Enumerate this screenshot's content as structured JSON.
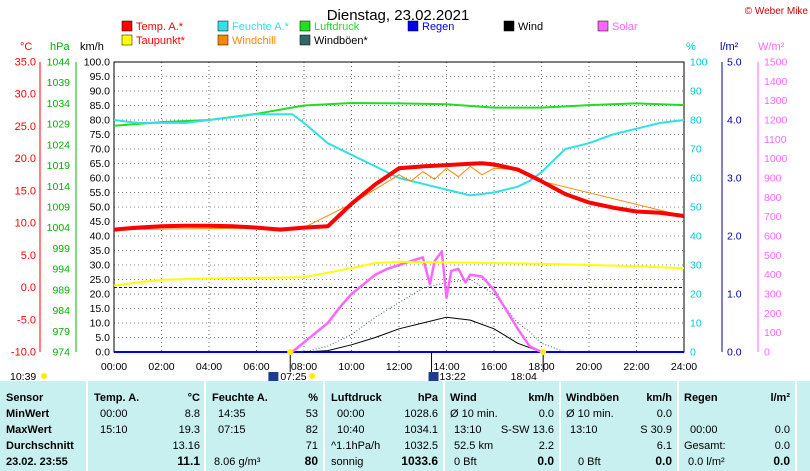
{
  "header": {
    "title": "Dienstag, 23.02.2021",
    "credit": "© Weber Mike"
  },
  "axes": {
    "c_label": "°C",
    "hpa_label": "hPa",
    "kmh_label": "km/h",
    "pct_label": "%",
    "lm2_label": "l/m²",
    "wm2_label": "W/m²",
    "c_ticks": [
      "35.0",
      "30.0",
      "25.0",
      "20.0",
      "15.0",
      "10.0",
      "5.0",
      "0.0",
      "-5.0",
      "-10.0"
    ],
    "hpa_ticks": [
      "1044",
      "1039",
      "1034",
      "1029",
      "1024",
      "1019",
      "1014",
      "1009",
      "1004",
      "999",
      "994",
      "989",
      "984",
      "979",
      "974"
    ],
    "kmh_ticks": [
      "100.0",
      "95.0",
      "90.0",
      "85.0",
      "80.0",
      "75.0",
      "70.0",
      "65.0",
      "60.0",
      "55.0",
      "50.0",
      "45.0",
      "40.0",
      "35.0",
      "30.0",
      "25.0",
      "20.0",
      "15.0",
      "10.0",
      "5.0",
      "0.0"
    ],
    "pct_ticks": [
      "100",
      "90",
      "80",
      "70",
      "60",
      "50",
      "40",
      "30",
      "20",
      "10",
      "0"
    ],
    "lm2_ticks": [
      "5.0",
      "4.0",
      "3.0",
      "2.0",
      "1.0",
      "0.0"
    ],
    "wm2_ticks": [
      "1500",
      "1400",
      "1300",
      "1200",
      "1100",
      "1000",
      "900",
      "800",
      "700",
      "600",
      "500",
      "400",
      "300",
      "200",
      "100",
      "0"
    ],
    "time_ticks": [
      "00:00",
      "02:00",
      "04:00",
      "06:00",
      "08:00",
      "10:00",
      "12:00",
      "14:00",
      "16:00",
      "18:00",
      "20:00",
      "22:00",
      "24:00"
    ]
  },
  "legend": [
    {
      "label": "Temp. A.*",
      "color": "#ff0000"
    },
    {
      "label": "Feuchte A.*",
      "color": "#33e0e8"
    },
    {
      "label": "Luftdruck",
      "color": "#22dd22"
    },
    {
      "label": "Regen",
      "color": "#0000ee"
    },
    {
      "label": "Wind",
      "color": "#000000"
    },
    {
      "label": "Solar",
      "color": "#ff66ff"
    },
    {
      "label": "Taupunkt*",
      "color": "#ffff00"
    },
    {
      "label": "Windchill",
      "color": "#ff8800"
    },
    {
      "label": "Windböen*",
      "color": "#336666"
    }
  ],
  "markers": {
    "left_time": "10:39",
    "sunrise": "07:25",
    "noon": "13:22",
    "sunset": "18:04"
  },
  "chart_data": {
    "type": "line",
    "title": "Dienstag, 23.02.2021",
    "x_unit": "hour",
    "xlim": [
      0,
      24
    ],
    "series": [
      {
        "name": "Temp. A.*",
        "unit": "°C",
        "color": "#ff0000",
        "x": [
          0,
          1,
          2,
          3,
          4,
          5,
          6,
          7,
          8,
          9,
          10,
          11,
          12,
          13,
          14,
          15,
          15.5,
          16,
          17,
          18,
          19,
          20,
          21,
          22,
          23,
          24
        ],
        "y": [
          9.0,
          9.3,
          9.5,
          9.6,
          9.6,
          9.5,
          9.3,
          9.0,
          9.3,
          9.5,
          13,
          16,
          18.5,
          18.8,
          19.0,
          19.2,
          19.3,
          19.1,
          18.3,
          16.5,
          14.5,
          13.2,
          12.4,
          11.8,
          11.6,
          11.1
        ]
      },
      {
        "name": "Feuchte A.*",
        "unit": "%",
        "color": "#33e0e8",
        "x": [
          0,
          1,
          2,
          3,
          4,
          5,
          6,
          7,
          7.5,
          8,
          9,
          10,
          11,
          12,
          13,
          14,
          15,
          16,
          17,
          17.5,
          18,
          19,
          20,
          21,
          22,
          23,
          24
        ],
        "y": [
          80,
          79,
          79,
          79,
          80,
          81,
          82,
          82,
          82,
          79,
          72,
          68,
          64,
          60,
          58,
          56,
          54,
          55,
          57,
          59,
          62,
          70,
          72,
          75,
          77,
          79,
          80
        ]
      },
      {
        "name": "Luftdruck",
        "unit": "hPa",
        "color": "#22dd22",
        "x": [
          0,
          2,
          4,
          6,
          8,
          10,
          12,
          14,
          16,
          18,
          20,
          22,
          24
        ],
        "y": [
          1028.6,
          1029.5,
          1030,
          1031.5,
          1033.5,
          1034.1,
          1034,
          1033.8,
          1033,
          1033,
          1033.6,
          1034,
          1033.6
        ]
      },
      {
        "name": "Taupunkt*",
        "unit": "°C",
        "color": "#ffff00",
        "x": [
          0,
          1,
          2,
          4,
          6,
          8,
          10,
          11,
          12,
          14,
          16,
          18,
          20,
          22,
          24
        ],
        "y": [
          0.3,
          0.8,
          1.2,
          1.4,
          1.5,
          1.6,
          3.0,
          3.8,
          4.0,
          3.9,
          3.8,
          3.7,
          3.5,
          3.3,
          3.0
        ]
      },
      {
        "name": "Windchill",
        "unit": "°C",
        "color": "#ff8800",
        "x": [
          0,
          8,
          10,
          12,
          12.5,
          13,
          13.5,
          14,
          14.5,
          15,
          15.5,
          16,
          17,
          18,
          24
        ],
        "y": [
          9.0,
          9.3,
          13,
          17.5,
          16.5,
          18.0,
          16.8,
          18.5,
          17.2,
          18.8,
          17.5,
          18.5,
          18.3,
          16.5,
          11.1
        ]
      },
      {
        "name": "Wind",
        "unit": "km/h",
        "color": "#000000",
        "x": [
          8,
          9,
          10,
          11,
          12,
          13,
          14,
          15,
          16,
          17,
          18
        ],
        "y": [
          0,
          0.5,
          2.5,
          5,
          8,
          10,
          12,
          11,
          8,
          3,
          0
        ]
      },
      {
        "name": "Windböen*",
        "unit": "km/h",
        "color": "#336666",
        "x": [
          8,
          9,
          10,
          11,
          12,
          13,
          14,
          15,
          16,
          17,
          17.5,
          18,
          19
        ],
        "y": [
          0,
          2,
          6,
          12,
          17,
          22,
          24,
          25,
          20,
          10,
          7,
          3,
          0
        ]
      },
      {
        "name": "Solar",
        "unit": "W/m²",
        "color": "#ff66ff",
        "x": [
          7.5,
          8,
          8.5,
          9,
          9.5,
          10,
          10.5,
          11,
          11.5,
          12,
          12.5,
          13,
          13.3,
          13.5,
          13.8,
          14,
          14.2,
          14.5,
          14.8,
          15,
          15.5,
          16,
          16.5,
          17,
          17.5,
          18
        ],
        "y": [
          0,
          50,
          100,
          150,
          230,
          300,
          350,
          400,
          430,
          450,
          470,
          490,
          350,
          470,
          520,
          280,
          420,
          430,
          360,
          400,
          390,
          320,
          220,
          120,
          30,
          0
        ]
      },
      {
        "name": "Regen",
        "unit": "l/m²",
        "color": "#0000ee",
        "x": [
          0,
          24
        ],
        "y": [
          0,
          0
        ]
      }
    ]
  },
  "table": {
    "headers": {
      "sensor": "Sensor",
      "temp": "Temp. A.",
      "temp_unit": "°C",
      "feuchte": "Feuchte A.",
      "feuchte_unit": "%",
      "druck": "Luftdruck",
      "druck_unit": "hPa",
      "wind": "Wind",
      "wind_unit": "km/h",
      "boeen": "Windböen",
      "boeen_unit": "km/h",
      "regen": "Regen",
      "regen_unit": "l/m²"
    },
    "rows": [
      {
        "label": "MinWert",
        "temp_time": "00:00",
        "temp_val": "8.8",
        "feuchte_time": "14:35",
        "feuchte_val": "53",
        "druck_time": "00:00",
        "druck_val": "1028.6",
        "wind_a": "Ø 10 min.",
        "wind_val": "0.0",
        "boeen_a": "Ø 10 min.",
        "boeen_val": "0.0",
        "regen_a": "",
        "regen_val": ""
      },
      {
        "label": "MaxWert",
        "temp_time": "15:10",
        "temp_val": "19.3",
        "feuchte_time": "07:15",
        "feuchte_val": "82",
        "druck_time": "10:40",
        "druck_val": "1034.1",
        "wind_a": "13:10",
        "wind_b": "S-SW 13.6",
        "boeen_a": "13:10",
        "boeen_val": "S 30.9",
        "regen_a": "00:00",
        "regen_val": "0.0"
      },
      {
        "label": "Durchschnitt",
        "temp_time": "",
        "temp_val": "13.16",
        "feuchte_time": "",
        "feuchte_val": "71",
        "druck_time": "^1.1hPa/h",
        "druck_val": "1032.5",
        "wind_a": "52.5 km",
        "wind_val": "2.2",
        "boeen_a": "",
        "boeen_val": "6.1",
        "regen_a": "Gesamt:",
        "regen_val": "0.0"
      },
      {
        "label": "23.02. 23:55",
        "temp_time": "",
        "temp_val": "11.1",
        "feuchte_time": "8.06 g/m³",
        "feuchte_val": "80",
        "druck_time": "sonnig",
        "druck_val": "1033.6",
        "wind_a": "0 Bft",
        "wind_val": "0.0",
        "boeen_a": "0 Bft",
        "boeen_val": "0.0",
        "regen_a": "0.0 l/m²",
        "regen_val": "0.0"
      }
    ]
  }
}
